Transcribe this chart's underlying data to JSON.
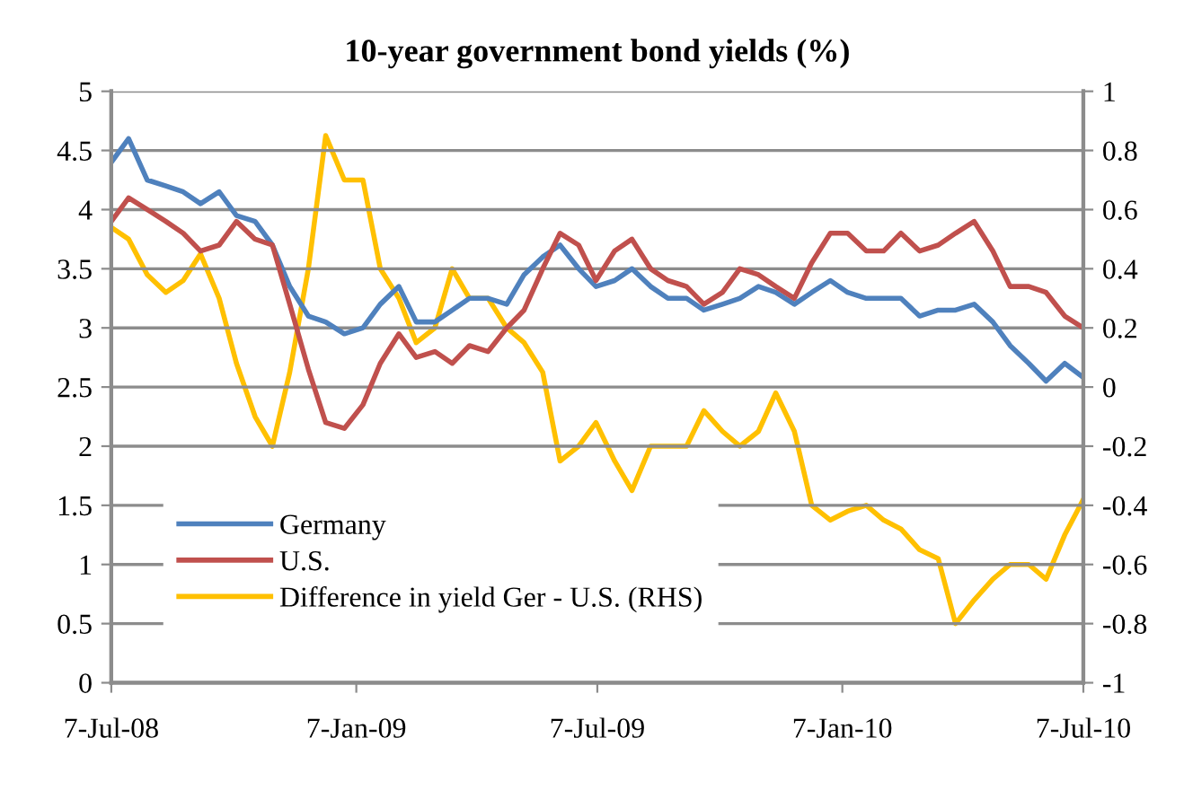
{
  "chart_data": {
    "type": "line",
    "title": "10-year government bond yields (%)",
    "x": [
      "2008-07-07",
      "2008-07-20",
      "2008-08-03",
      "2008-08-17",
      "2008-08-30",
      "2008-09-12",
      "2008-09-26",
      "2008-10-09",
      "2008-10-23",
      "2008-11-05",
      "2008-11-18",
      "2008-12-02",
      "2008-12-15",
      "2008-12-29",
      "2009-01-12",
      "2009-01-25",
      "2009-02-08",
      "2009-02-21",
      "2009-03-07",
      "2009-03-20",
      "2009-04-02",
      "2009-04-16",
      "2009-04-30",
      "2009-05-13",
      "2009-05-27",
      "2009-06-09",
      "2009-06-23",
      "2009-07-06",
      "2009-07-20",
      "2009-08-02",
      "2009-08-16",
      "2009-08-29",
      "2009-09-12",
      "2009-09-25",
      "2009-10-09",
      "2009-10-22",
      "2009-11-05",
      "2009-11-18",
      "2009-12-02",
      "2009-12-15",
      "2009-12-29",
      "2010-01-11",
      "2010-01-25",
      "2010-02-07",
      "2010-02-20",
      "2010-03-06",
      "2010-03-20",
      "2010-04-02",
      "2010-04-16",
      "2010-04-30",
      "2010-05-13",
      "2010-05-27",
      "2010-06-09",
      "2010-06-23",
      "2010-07-07"
    ],
    "series": [
      {
        "name": "Germany",
        "color": "#4f81bd",
        "values": [
          4.4,
          4.6,
          4.25,
          4.2,
          4.15,
          4.05,
          4.15,
          3.95,
          3.9,
          3.7,
          3.35,
          3.1,
          3.05,
          2.95,
          3.0,
          3.2,
          3.35,
          3.05,
          3.05,
          3.15,
          3.25,
          3.25,
          3.2,
          3.45,
          3.6,
          3.7,
          3.5,
          3.35,
          3.4,
          3.5,
          3.35,
          3.25,
          3.25,
          3.15,
          3.2,
          3.25,
          3.35,
          3.3,
          3.2,
          3.3,
          3.4,
          3.3,
          3.25,
          3.25,
          3.25,
          3.1,
          3.15,
          3.15,
          3.2,
          3.05,
          2.85,
          2.7,
          2.55,
          2.7,
          2.58
        ]
      },
      {
        "name": "U.S.",
        "color": "#c0504d",
        "values": [
          3.9,
          4.1,
          4.0,
          3.9,
          3.8,
          3.65,
          3.7,
          3.9,
          3.75,
          3.7,
          3.2,
          2.65,
          2.2,
          2.15,
          2.35,
          2.7,
          2.95,
          2.75,
          2.8,
          2.7,
          2.85,
          2.8,
          3.0,
          3.15,
          3.5,
          3.8,
          3.7,
          3.4,
          3.65,
          3.75,
          3.5,
          3.4,
          3.35,
          3.2,
          3.3,
          3.5,
          3.45,
          3.35,
          3.25,
          3.55,
          3.8,
          3.8,
          3.65,
          3.65,
          3.8,
          3.65,
          3.7,
          3.8,
          3.9,
          3.65,
          3.35,
          3.35,
          3.3,
          3.1,
          3.0
        ]
      },
      {
        "name": "Difference in yield Ger - U.S. (RHS)",
        "color": "#ffc000",
        "axis": "y2",
        "values": [
          0.54,
          0.5,
          0.38,
          0.32,
          0.36,
          0.45,
          0.3,
          0.08,
          -0.1,
          -0.2,
          0.05,
          0.4,
          0.85,
          0.7,
          0.7,
          0.4,
          0.3,
          0.15,
          0.2,
          0.4,
          0.3,
          0.3,
          0.2,
          0.15,
          0.05,
          -0.25,
          -0.2,
          -0.12,
          -0.25,
          -0.35,
          -0.2,
          -0.2,
          -0.2,
          -0.08,
          -0.15,
          -0.2,
          -0.15,
          -0.02,
          -0.15,
          -0.4,
          -0.45,
          -0.42,
          -0.4,
          -0.45,
          -0.48,
          -0.55,
          -0.58,
          -0.8,
          -0.72,
          -0.65,
          -0.6,
          -0.6,
          -0.65,
          -0.5,
          -0.38
        ]
      }
    ],
    "xlim": [
      "2008-07-07",
      "2010-07-07"
    ],
    "xticks": [
      {
        "value": "2008-07-07",
        "label": "7-Jul-08"
      },
      {
        "value": "2009-01-07",
        "label": "7-Jan-09"
      },
      {
        "value": "2009-07-07",
        "label": "7-Jul-09"
      },
      {
        "value": "2010-01-07",
        "label": "7-Jan-10"
      },
      {
        "value": "2010-07-07",
        "label": "7-Jul-10"
      }
    ],
    "ylim": [
      0,
      5
    ],
    "yticks": [
      0,
      0.5,
      1,
      1.5,
      2,
      2.5,
      3,
      3.5,
      4,
      4.5,
      5
    ],
    "y2lim": [
      -1,
      1
    ],
    "y2ticks": [
      {
        "value": -1,
        "label": "-1"
      },
      {
        "value": -0.8,
        "label": "-0.8"
      },
      {
        "value": -0.6,
        "label": "-0.6"
      },
      {
        "value": -0.4,
        "label": "-0.4"
      },
      {
        "value": -0.2,
        "label": "-0.2"
      },
      0,
      0.2,
      0.4,
      0.6,
      0.8,
      1
    ],
    "grid": "y",
    "legend": "bottom left"
  }
}
